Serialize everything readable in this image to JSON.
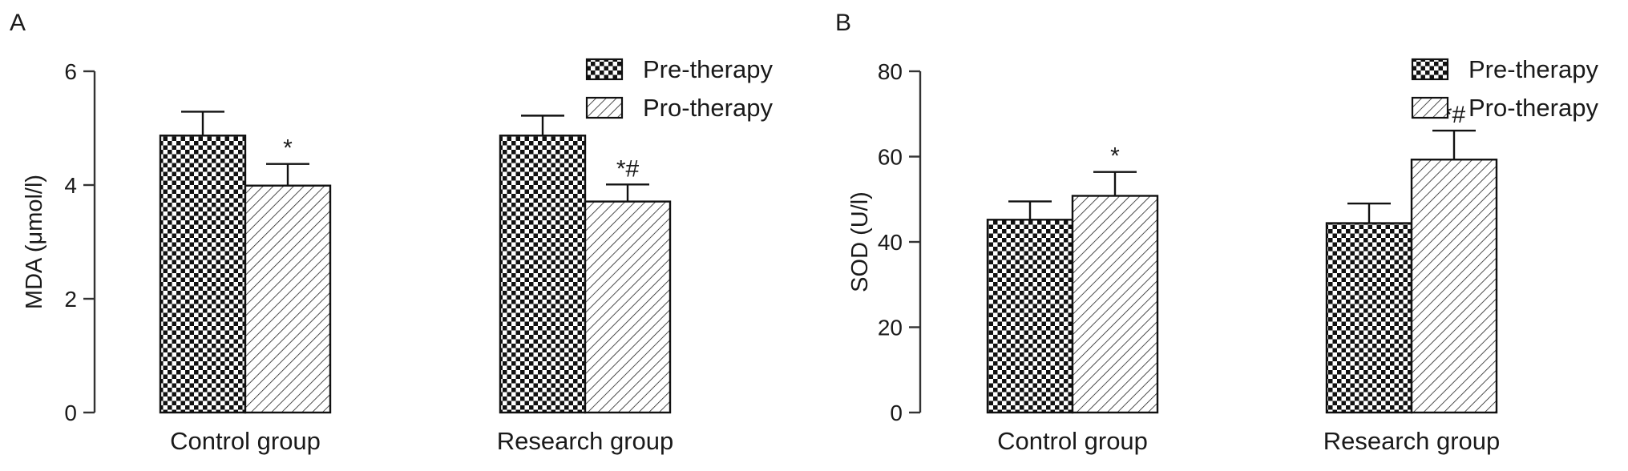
{
  "chart_data": [
    {
      "panel": "A",
      "type": "bar",
      "ylabel": "MDA (μmol/l)",
      "ylim": [
        0,
        6
      ],
      "yticks": [
        0,
        2,
        4,
        6
      ],
      "categories": [
        "Control group",
        "Research group"
      ],
      "series": [
        {
          "name": "Pre-therapy",
          "pattern": "checker",
          "values": [
            4.87,
            4.87
          ],
          "errors": [
            0.42,
            0.35
          ]
        },
        {
          "name": "Pro-therapy",
          "pattern": "hatch",
          "values": [
            3.99,
            3.71
          ],
          "errors": [
            0.38,
            0.3
          ]
        }
      ],
      "annotations": [
        {
          "category": 0,
          "series": 1,
          "text": "*"
        },
        {
          "category": 1,
          "series": 1,
          "text": "*#"
        }
      ],
      "legend": "top-right",
      "grid": false
    },
    {
      "panel": "B",
      "type": "bar",
      "ylabel": "SOD (U/l)",
      "ylim": [
        0,
        80
      ],
      "yticks": [
        0,
        20,
        40,
        60,
        80
      ],
      "categories": [
        "Control group",
        "Research group"
      ],
      "series": [
        {
          "name": "Pre-therapy",
          "pattern": "checker",
          "values": [
            45.2,
            44.4
          ],
          "errors": [
            4.3,
            4.6
          ]
        },
        {
          "name": "Pro-therapy",
          "pattern": "hatch",
          "values": [
            50.8,
            59.3
          ],
          "errors": [
            5.6,
            6.8
          ]
        }
      ],
      "annotations": [
        {
          "category": 0,
          "series": 1,
          "text": "*"
        },
        {
          "category": 1,
          "series": 1,
          "text": "*#"
        }
      ],
      "legend": "top-right",
      "grid": false
    }
  ]
}
